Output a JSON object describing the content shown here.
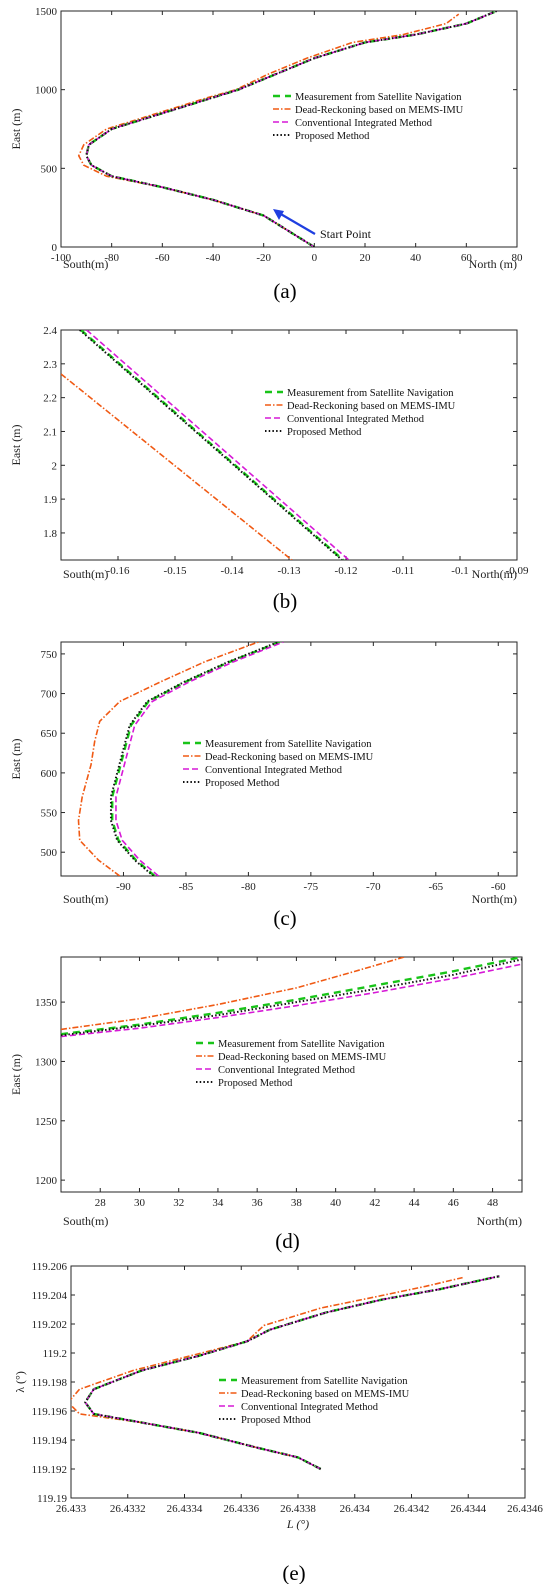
{
  "colors": {
    "satellite": "#19c419",
    "dead_reckoning": "#f05a14",
    "conventional": "#d619d6",
    "proposed": "#111111",
    "arrow": "#1f3fe0"
  },
  "legend_labels": [
    "Measurement from Satellite Navigation",
    "Dead-Reckoning based on MEMS-IMU",
    "Conventional Integrated Method",
    "Proposed Method"
  ],
  "chart_data": [
    {
      "type": "line",
      "caption": "(a)",
      "ylabel": "East (m)",
      "x_side_labels": [
        "South(m)",
        "North (m)"
      ],
      "xlim": [
        -100,
        80
      ],
      "ylim": [
        0,
        1500
      ],
      "xticks": [
        -100,
        -80,
        -60,
        -40,
        -20,
        0,
        20,
        40,
        60,
        80
      ],
      "yticks": [
        0,
        500,
        1000,
        1500
      ],
      "xticklabels": [
        "-100",
        "-80",
        "-60",
        "-40",
        "-20",
        "0",
        "20",
        "40",
        "60",
        "80"
      ],
      "yticklabels": [
        "0",
        "500",
        "1000",
        "1500"
      ],
      "legend": [
        "Measurement from Satellite Navigation",
        "Dead-Reckoning based on MEMS-IMU",
        "Conventional Integrated Method",
        "Proposed Method"
      ],
      "annotation": "Start Point",
      "series": [
        {
          "name": "Measurement from Satellite Navigation",
          "style": "satellite",
          "x": [
            0,
            -5,
            -12,
            -20,
            -40,
            -60,
            -80,
            -88,
            -90,
            -89,
            -80,
            -60,
            -40,
            -30,
            -15,
            0,
            20,
            40,
            60,
            72
          ],
          "y": [
            0,
            50,
            120,
            200,
            300,
            380,
            450,
            520,
            580,
            650,
            750,
            850,
            950,
            1000,
            1100,
            1200,
            1300,
            1350,
            1420,
            1500
          ]
        },
        {
          "name": "Dead-Reckoning based on MEMS-IMU",
          "style": "dead_reckoning",
          "x": [
            0,
            -5,
            -12,
            -20,
            -40,
            -60,
            -82,
            -91,
            -93,
            -91,
            -82,
            -62,
            -42,
            -31,
            -18,
            -3,
            15,
            35,
            52,
            57
          ],
          "y": [
            0,
            50,
            120,
            200,
            300,
            380,
            450,
            520,
            580,
            650,
            750,
            850,
            950,
            1000,
            1100,
            1200,
            1300,
            1350,
            1420,
            1480
          ]
        },
        {
          "name": "Conventional Integrated Method",
          "style": "conventional",
          "x": [
            0,
            -5,
            -12,
            -20,
            -40,
            -60,
            -80,
            -88,
            -90,
            -89,
            -80,
            -60,
            -40,
            -30,
            -15,
            0,
            20,
            40,
            60,
            72
          ],
          "y": [
            0,
            50,
            120,
            200,
            300,
            380,
            450,
            520,
            580,
            650,
            750,
            850,
            950,
            1000,
            1100,
            1200,
            1300,
            1350,
            1420,
            1500
          ]
        },
        {
          "name": "Proposed Method",
          "style": "proposed",
          "x": [
            0,
            -5,
            -12,
            -20,
            -40,
            -60,
            -80,
            -88,
            -90,
            -89,
            -80,
            -60,
            -40,
            -30,
            -15,
            0,
            20,
            40,
            60,
            72
          ],
          "y": [
            0,
            50,
            120,
            200,
            300,
            380,
            450,
            520,
            580,
            650,
            750,
            850,
            950,
            1000,
            1100,
            1200,
            1300,
            1350,
            1420,
            1500
          ]
        }
      ]
    },
    {
      "type": "line",
      "caption": "(b)",
      "ylabel": "East (m)",
      "x_side_labels": [
        "South(m)",
        "North(m)"
      ],
      "xlim": [
        -0.17,
        -0.09
      ],
      "ylim": [
        1.72,
        2.4
      ],
      "xticks": [
        -0.16,
        -0.15,
        -0.14,
        -0.13,
        -0.12,
        -0.11,
        -0.1,
        -0.09
      ],
      "yticks": [
        1.8,
        1.9,
        2.0,
        2.1,
        2.2,
        2.3,
        2.4
      ],
      "xticklabels": [
        "-0.16",
        "-0.15",
        "-0.14",
        "-0.13",
        "-0.12",
        "-0.11",
        "-0.1",
        "-0.09"
      ],
      "yticklabels": [
        "1.8",
        "1.9",
        "2",
        "2.1",
        "2.2",
        "2.3",
        "2.4"
      ],
      "legend": [
        "Measurement from Satellite Navigation",
        "Dead-Reckoning based on MEMS-IMU",
        "Conventional Integrated Method",
        "Proposed Method"
      ],
      "series": [
        {
          "name": "Measurement from Satellite Navigation",
          "style": "satellite",
          "x": [
            -0.1665,
            -0.1205
          ],
          "y": [
            2.4,
            1.72
          ]
        },
        {
          "name": "Dead-Reckoning based on MEMS-IMU",
          "style": "dead_reckoning",
          "x": [
            -0.17,
            -0.1295
          ],
          "y": [
            2.27,
            1.72
          ]
        },
        {
          "name": "Conventional Integrated Method",
          "style": "conventional",
          "x": [
            -0.1655,
            -0.1195
          ],
          "y": [
            2.4,
            1.72
          ]
        },
        {
          "name": "Proposed Method",
          "style": "proposed",
          "x": [
            -0.1667,
            -0.1207
          ],
          "y": [
            2.4,
            1.72
          ]
        }
      ]
    },
    {
      "type": "line",
      "caption": "(c)",
      "ylabel": "East (m)",
      "x_side_labels": [
        "South(m)",
        "North(m)"
      ],
      "xlim": [
        -95,
        -58.5
      ],
      "ylim": [
        470,
        765
      ],
      "xticks": [
        -90,
        -85,
        -80,
        -75,
        -70,
        -65,
        -60
      ],
      "yticks": [
        500,
        550,
        600,
        650,
        700,
        750
      ],
      "xticklabels": [
        "-90",
        "-85",
        "-80",
        "-75",
        "-70",
        "-65",
        "-60"
      ],
      "yticklabels": [
        "500",
        "550",
        "600",
        "650",
        "700",
        "750"
      ],
      "legend": [
        "Measurement from Satellite Navigation",
        "Dead-Reckoning based on MEMS-IMU",
        "Conventional Integrated Method",
        "Proposed Method"
      ],
      "series": [
        {
          "name": "Measurement from Satellite Navigation",
          "style": "satellite",
          "x": [
            -87.5,
            -89,
            -90.4,
            -90.9,
            -90.9,
            -90.4,
            -89.9,
            -89.4,
            -88,
            -85,
            -81.5,
            -77.5
          ],
          "y": [
            470,
            490,
            515,
            540,
            570,
            600,
            630,
            660,
            690,
            715,
            740,
            765
          ]
        },
        {
          "name": "Dead-Reckoning based on MEMS-IMU",
          "style": "dead_reckoning",
          "x": [
            -90.3,
            -92,
            -93.5,
            -93.6,
            -93.3,
            -92.6,
            -92.3,
            -91.9,
            -90.3,
            -87,
            -83.5,
            -79.2
          ],
          "y": [
            470,
            490,
            515,
            540,
            570,
            610,
            640,
            665,
            690,
            715,
            740,
            765
          ]
        },
        {
          "name": "Conventional Integrated Method",
          "style": "conventional",
          "x": [
            -87.2,
            -88.7,
            -90.1,
            -90.6,
            -90.6,
            -90.1,
            -89.6,
            -89.1,
            -87.7,
            -84.7,
            -81.2,
            -77.2
          ],
          "y": [
            470,
            490,
            515,
            540,
            570,
            600,
            630,
            660,
            690,
            715,
            740,
            765
          ]
        },
        {
          "name": "Proposed Method",
          "style": "proposed",
          "x": [
            -87.6,
            -89.1,
            -90.5,
            -91.0,
            -91.0,
            -90.5,
            -90.0,
            -89.5,
            -88.1,
            -85.1,
            -81.6,
            -77.6
          ],
          "y": [
            470,
            490,
            515,
            540,
            570,
            600,
            630,
            660,
            690,
            715,
            740,
            765
          ]
        }
      ]
    },
    {
      "type": "line",
      "caption": "(d)",
      "ylabel": "East (m)",
      "x_side_labels": [
        "South(m)",
        "North(m)"
      ],
      "xlim": [
        26,
        49.5
      ],
      "ylim": [
        1190,
        1388
      ],
      "xticks": [
        28,
        30,
        32,
        34,
        36,
        38,
        40,
        42,
        44,
        46,
        48
      ],
      "yticks": [
        1200,
        1250,
        1300,
        1350
      ],
      "xticklabels": [
        "28",
        "30",
        "32",
        "34",
        "36",
        "38",
        "40",
        "42",
        "44",
        "46",
        "48"
      ],
      "yticklabels": [
        "1200",
        "1250",
        "1300",
        "1350"
      ],
      "legend": [
        "Measurement from Satellite Navigation",
        "Dead-Reckoning based on MEMS-IMU",
        "Conventional Integrated Method",
        "Proposed Method"
      ],
      "series": [
        {
          "name": "Measurement from Satellite Navigation",
          "style": "satellite",
          "x": [
            26,
            30,
            34,
            38,
            42,
            46,
            49.5
          ],
          "y": [
            1323,
            1331,
            1341,
            1352,
            1364,
            1376,
            1388
          ]
        },
        {
          "name": "Dead-Reckoning based on MEMS-IMU",
          "style": "dead_reckoning",
          "x": [
            26,
            30,
            34,
            38,
            41,
            43.5
          ],
          "y": [
            1327,
            1336,
            1348,
            1362,
            1376,
            1388
          ]
        },
        {
          "name": "Conventional Integrated Method",
          "style": "conventional",
          "x": [
            26,
            30,
            34,
            38,
            42,
            46,
            49.5
          ],
          "y": [
            1321,
            1328,
            1337,
            1347,
            1358,
            1370,
            1382
          ]
        },
        {
          "name": "Proposed Method",
          "style": "proposed",
          "x": [
            26,
            30,
            34,
            38,
            42,
            46,
            49.5
          ],
          "y": [
            1322,
            1330,
            1339,
            1350,
            1361,
            1373,
            1386
          ]
        }
      ]
    },
    {
      "type": "line",
      "caption": "(e)",
      "ylabel": "λ (°)",
      "xlabel": "L (°)",
      "xlim": [
        26.433,
        26.4346
      ],
      "ylim": [
        119.19,
        119.206
      ],
      "xticks": [
        26.433,
        26.4332,
        26.4334,
        26.4336,
        26.4338,
        26.434,
        26.4342,
        26.4344,
        26.4346
      ],
      "yticks": [
        119.19,
        119.192,
        119.194,
        119.196,
        119.198,
        119.2,
        119.202,
        119.204,
        119.206
      ],
      "xticklabels": [
        "26.433",
        "26.4332",
        "26.4334",
        "26.4336",
        "26.4338",
        "26.434",
        "26.4342",
        "26.4344",
        "26.4346"
      ],
      "yticklabels": [
        "119.19",
        "119.192",
        "119.194",
        "119.196",
        "119.198",
        "119.2",
        "119.202",
        "119.204",
        "119.206"
      ],
      "legend": [
        "Measurement from Satellite Navigation",
        "Dead-Reckoning based on MEMS-IMU",
        "Conventional Integrated Method",
        "Proposed Mthod"
      ],
      "series": [
        {
          "name": "Measurement from Satellite Navigation",
          "style": "satellite",
          "x": [
            26.43388,
            26.4338,
            26.43365,
            26.43345,
            26.43325,
            26.43308,
            26.43305,
            26.43308,
            26.43325,
            26.43345,
            26.43362,
            26.4337,
            26.4339,
            26.4341,
            26.4343,
            26.43451
          ],
          "y": [
            119.192,
            119.1928,
            119.1935,
            119.1945,
            119.1952,
            119.1958,
            119.1966,
            119.1975,
            119.1988,
            119.1998,
            119.2008,
            119.2016,
            119.2028,
            119.2037,
            119.2044,
            119.2053
          ]
        },
        {
          "name": "Dead-Reckoning based on MEMS-IMU",
          "style": "dead_reckoning",
          "x": [
            26.43388,
            26.4338,
            26.43365,
            26.43345,
            26.43325,
            26.43303,
            26.43299,
            26.43303,
            26.43322,
            26.43342,
            26.43362,
            26.43368,
            26.43388,
            26.43408,
            26.43425,
            26.43438
          ],
          "y": [
            119.192,
            119.1928,
            119.1935,
            119.1945,
            119.1952,
            119.1958,
            119.1966,
            119.1975,
            119.1988,
            119.1998,
            119.2008,
            119.2019,
            119.2031,
            119.2039,
            119.2046,
            119.2052
          ]
        },
        {
          "name": "Conventional Integrated Method",
          "style": "conventional",
          "x": [
            26.43388,
            26.4338,
            26.43365,
            26.43345,
            26.43325,
            26.43308,
            26.43305,
            26.43308,
            26.43325,
            26.43345,
            26.43362,
            26.4337,
            26.4339,
            26.4341,
            26.4343,
            26.43451
          ],
          "y": [
            119.192,
            119.1928,
            119.1935,
            119.1945,
            119.1952,
            119.1958,
            119.1966,
            119.1975,
            119.1988,
            119.1998,
            119.2008,
            119.2016,
            119.2028,
            119.2037,
            119.2044,
            119.2053
          ]
        },
        {
          "name": "Proposed Mthod",
          "style": "proposed",
          "x": [
            26.43388,
            26.4338,
            26.43365,
            26.43345,
            26.43325,
            26.43308,
            26.43305,
            26.43308,
            26.43325,
            26.43345,
            26.43362,
            26.4337,
            26.4339,
            26.4341,
            26.4343,
            26.43451
          ],
          "y": [
            119.192,
            119.1928,
            119.1935,
            119.1945,
            119.1952,
            119.1958,
            119.1966,
            119.1975,
            119.1988,
            119.1998,
            119.2008,
            119.2016,
            119.2028,
            119.2037,
            119.2044,
            119.2053
          ]
        }
      ]
    }
  ]
}
